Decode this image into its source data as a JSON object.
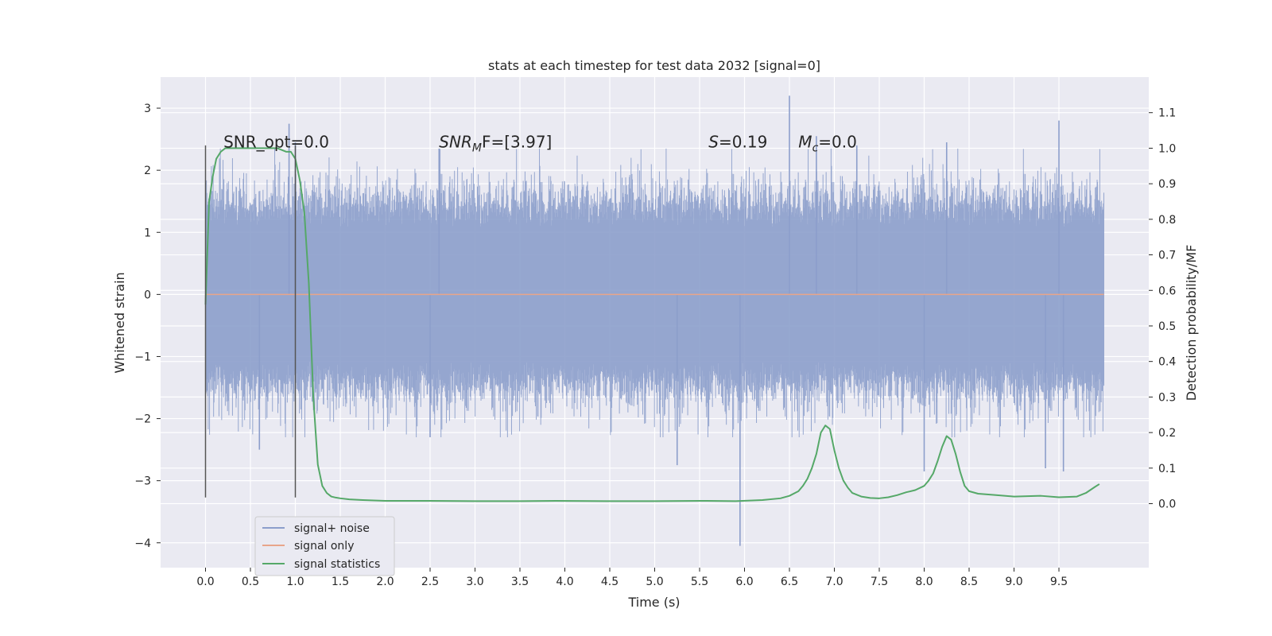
{
  "chart_data": {
    "type": "line",
    "title": "stats at each timestep for test data 2032 [signal=0]",
    "xlabel": "Time (s)",
    "ylabel": "Whitened strain",
    "y2label": "Detection probability/MF",
    "xlim": [
      -0.5,
      10.5
    ],
    "ylim": [
      -4.4,
      3.5
    ],
    "y2lim": [
      -0.18,
      1.2
    ],
    "x_ticks": [
      0.0,
      0.5,
      1.0,
      1.5,
      2.0,
      2.5,
      3.0,
      3.5,
      4.0,
      4.5,
      5.0,
      5.5,
      6.0,
      6.5,
      7.0,
      7.5,
      8.0,
      8.5,
      9.0,
      9.5
    ],
    "x_tick_labels": [
      "0.0",
      "0.5",
      "1.0",
      "1.5",
      "2.0",
      "2.5",
      "3.0",
      "3.5",
      "4.0",
      "4.5",
      "5.0",
      "5.5",
      "6.0",
      "6.5",
      "7.0",
      "7.5",
      "8.0",
      "8.5",
      "9.0",
      "9.5"
    ],
    "y_ticks": [
      -4,
      -3,
      -2,
      -1,
      0,
      1,
      2,
      3
    ],
    "y_tick_labels": [
      "−4",
      "−3",
      "−2",
      "−1",
      "0",
      "1",
      "2",
      "3"
    ],
    "y2_ticks": [
      0.0,
      0.1,
      0.2,
      0.3,
      0.4,
      0.5,
      0.6,
      0.7,
      0.8,
      0.9,
      1.0,
      1.1
    ],
    "y2_tick_labels": [
      "0.0",
      "0.1",
      "0.2",
      "0.3",
      "0.4",
      "0.5",
      "0.6",
      "0.7",
      "0.8",
      "0.9",
      "1.0",
      "1.1"
    ],
    "grid": true,
    "legend_placement": "lower-left",
    "annotations": [
      {
        "x": 0.2,
        "y2": 1.0,
        "text": "SNR_opt=0.0"
      },
      {
        "x": 2.6,
        "y2": 1.0,
        "text": "SNR",
        "sub": "M",
        "rest": "F=[3.97]",
        "italic": true
      },
      {
        "x": 5.6,
        "y2": 1.0,
        "text": "S",
        "rest": "=0.19",
        "italic": true
      },
      {
        "x": 6.6,
        "y2": 1.0,
        "text": "M",
        "sub": "c",
        "rest": "=0.0",
        "italic": true
      }
    ],
    "vlines": [
      {
        "x": 0.0,
        "y_from": -3.27,
        "y_to": 2.4
      },
      {
        "x": 1.0,
        "y_from": -3.27,
        "y_to": 2.4
      }
    ],
    "noise": {
      "x_start": 0.0,
      "x_end": 10.0,
      "samples": 2000,
      "core_amplitude": 1.2,
      "spikes": [
        {
          "x": 0.93,
          "y": 2.75
        },
        {
          "x": 1.0,
          "y": 2.45
        },
        {
          "x": 0.6,
          "y": -2.5
        },
        {
          "x": 2.6,
          "y": 2.35
        },
        {
          "x": 2.5,
          "y": -2.3
        },
        {
          "x": 5.25,
          "y": -2.75
        },
        {
          "x": 5.95,
          "y": -4.05
        },
        {
          "x": 6.5,
          "y": 3.2
        },
        {
          "x": 6.8,
          "y": 2.55
        },
        {
          "x": 7.25,
          "y": 2.4
        },
        {
          "x": 8.0,
          "y": -2.85
        },
        {
          "x": 9.5,
          "y": 2.8
        },
        {
          "x": 9.55,
          "y": -2.85
        },
        {
          "x": 9.35,
          "y": -2.8
        },
        {
          "x": 8.25,
          "y": 2.45
        }
      ]
    },
    "series": [
      {
        "name": "signal+ noise",
        "axis": "left",
        "color": "#8c9ecb",
        "kind": "noise"
      },
      {
        "name": "signal only",
        "axis": "left",
        "color": "#e8a58a",
        "x": [
          0.0,
          10.0
        ],
        "y": [
          0.0,
          0.0
        ]
      },
      {
        "name": "signal statistics",
        "axis": "right",
        "color": "#55a868",
        "x": [
          0.0,
          0.04,
          0.08,
          0.12,
          0.17,
          0.22,
          0.3,
          0.4,
          0.5,
          0.6,
          0.7,
          0.8,
          0.9,
          0.95,
          1.0,
          1.05,
          1.1,
          1.15,
          1.2,
          1.25,
          1.3,
          1.35,
          1.4,
          1.45,
          1.5,
          1.6,
          1.75,
          2.0,
          2.5,
          3.0,
          3.5,
          3.9,
          4.5,
          5.0,
          5.5,
          5.9,
          6.2,
          6.4,
          6.5,
          6.6,
          6.65,
          6.7,
          6.75,
          6.8,
          6.85,
          6.9,
          6.95,
          7.0,
          7.05,
          7.1,
          7.15,
          7.2,
          7.3,
          7.4,
          7.5,
          7.6,
          7.7,
          7.8,
          7.9,
          8.0,
          8.05,
          8.1,
          8.15,
          8.2,
          8.25,
          8.3,
          8.35,
          8.4,
          8.45,
          8.5,
          8.6,
          8.8,
          9.0,
          9.3,
          9.5,
          9.7,
          9.8,
          9.9,
          9.95
        ],
        "y": [
          0.56,
          0.85,
          0.92,
          0.97,
          0.99,
          1.0,
          1.0,
          1.0,
          1.0,
          1.0,
          1.0,
          1.0,
          0.99,
          0.99,
          0.97,
          0.91,
          0.82,
          0.62,
          0.3,
          0.11,
          0.05,
          0.03,
          0.02,
          0.017,
          0.015,
          0.012,
          0.01,
          0.008,
          0.008,
          0.007,
          0.007,
          0.008,
          0.007,
          0.007,
          0.008,
          0.007,
          0.01,
          0.015,
          0.022,
          0.035,
          0.05,
          0.07,
          0.1,
          0.14,
          0.2,
          0.22,
          0.21,
          0.15,
          0.1,
          0.065,
          0.045,
          0.03,
          0.02,
          0.016,
          0.015,
          0.018,
          0.024,
          0.032,
          0.038,
          0.05,
          0.065,
          0.085,
          0.12,
          0.16,
          0.19,
          0.18,
          0.14,
          0.09,
          0.05,
          0.035,
          0.028,
          0.024,
          0.02,
          0.022,
          0.018,
          0.02,
          0.03,
          0.047,
          0.055
        ]
      }
    ]
  }
}
